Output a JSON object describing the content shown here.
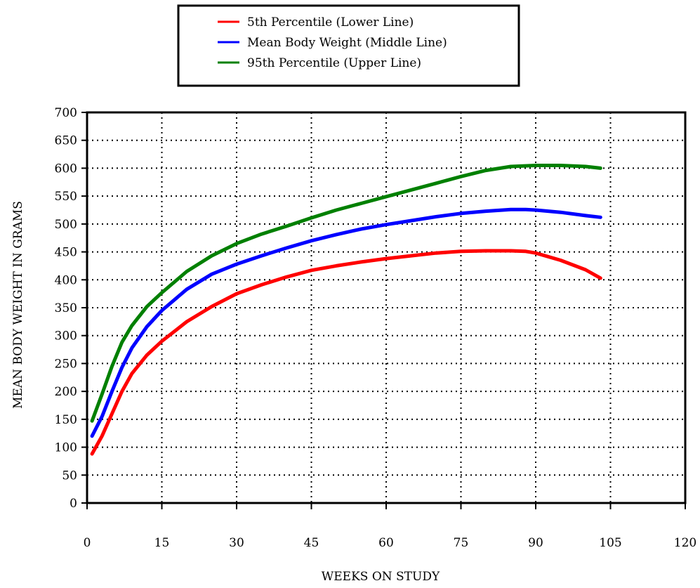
{
  "chart_data": {
    "type": "line",
    "title": "",
    "xlabel": "WEEKS ON STUDY",
    "ylabel": "MEAN BODY WEIGHT IN GRAMS",
    "xlim": [
      0,
      120
    ],
    "ylim": [
      0,
      700
    ],
    "xticks": [
      0,
      15,
      30,
      45,
      60,
      75,
      90,
      105,
      120
    ],
    "yticks": [
      0,
      50,
      100,
      150,
      200,
      250,
      300,
      350,
      400,
      450,
      500,
      550,
      600,
      650,
      700
    ],
    "grid": true,
    "legend_position": "top",
    "series": [
      {
        "name": "5th Percentile (Lower Line)",
        "color": "#ff0000",
        "x": [
          1,
          3,
          5,
          7,
          9,
          12,
          15,
          20,
          25,
          30,
          35,
          40,
          45,
          50,
          55,
          60,
          65,
          70,
          75,
          80,
          85,
          88,
          90,
          95,
          100,
          103
        ],
        "y": [
          88,
          120,
          160,
          200,
          232,
          265,
          290,
          325,
          352,
          375,
          391,
          405,
          417,
          425,
          432,
          438,
          443,
          448,
          451,
          452,
          452,
          451,
          448,
          435,
          418,
          403
        ]
      },
      {
        "name": "Mean Body Weight (Middle Line)",
        "color": "#0000ff",
        "x": [
          1,
          3,
          5,
          7,
          9,
          12,
          15,
          20,
          25,
          30,
          35,
          40,
          45,
          50,
          55,
          60,
          65,
          70,
          75,
          80,
          85,
          88,
          90,
          95,
          100,
          103
        ],
        "y": [
          120,
          155,
          200,
          243,
          278,
          316,
          345,
          383,
          410,
          428,
          443,
          457,
          470,
          481,
          491,
          499,
          506,
          513,
          519,
          523,
          526,
          526,
          525,
          521,
          515,
          512
        ]
      },
      {
        "name": "95th Percentile (Upper Line)",
        "color": "#008000",
        "x": [
          1,
          3,
          5,
          7,
          9,
          12,
          15,
          20,
          25,
          30,
          35,
          40,
          45,
          50,
          55,
          60,
          65,
          70,
          75,
          80,
          85,
          90,
          95,
          100,
          103
        ],
        "y": [
          147,
          195,
          245,
          288,
          318,
          352,
          377,
          415,
          443,
          465,
          482,
          496,
          511,
          525,
          537,
          549,
          561,
          573,
          585,
          596,
          603,
          605,
          605,
          603,
          600
        ]
      }
    ]
  }
}
